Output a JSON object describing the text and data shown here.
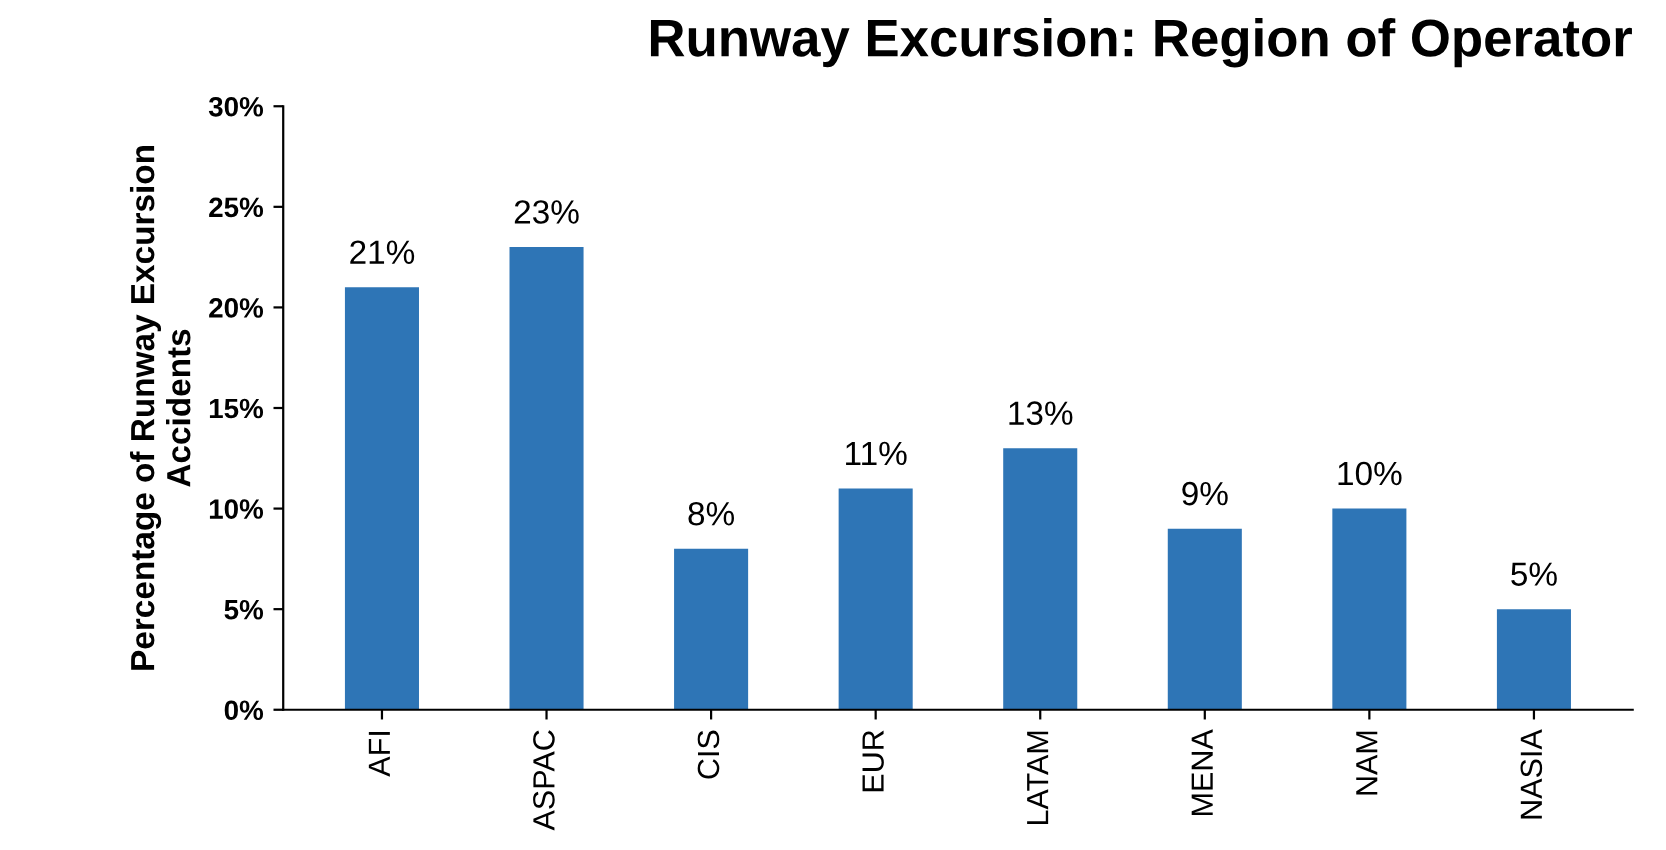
{
  "chart_data": {
    "type": "bar",
    "title": "Runway Excursion: Region of Operator",
    "ylabel": "Percentage of Runway Excursion\nAccidents",
    "categories": [
      "AFI",
      "ASPAC",
      "CIS",
      "EUR",
      "LATAM",
      "MENA",
      "NAM",
      "NASIA"
    ],
    "values": [
      21,
      23,
      8,
      11,
      13,
      9,
      10,
      5
    ],
    "value_labels": [
      "21%",
      "23%",
      "8%",
      "11%",
      "13%",
      "9%",
      "10%",
      "5%"
    ],
    "color": "#2e75b6",
    "ylim": [
      0,
      30
    ],
    "yticks": [
      {
        "value": 0,
        "label": "0%"
      },
      {
        "value": 5,
        "label": "5%"
      },
      {
        "value": 10,
        "label": "10%"
      },
      {
        "value": 15,
        "label": "15%"
      },
      {
        "value": 20,
        "label": "20%"
      },
      {
        "value": 25,
        "label": "25%"
      },
      {
        "value": 30,
        "label": "30%"
      }
    ],
    "grid": false,
    "legend": false
  }
}
